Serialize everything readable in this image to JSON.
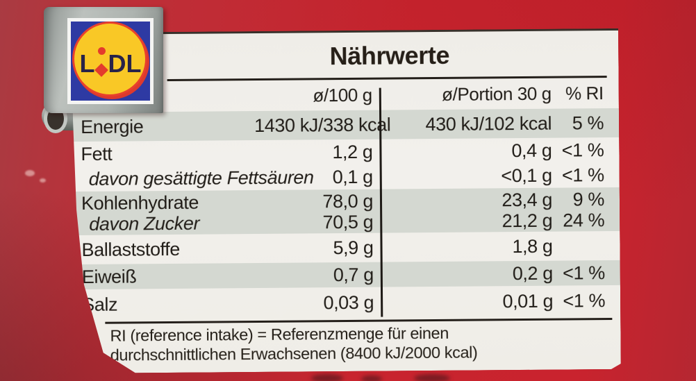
{
  "photo": {
    "background_red": "#c8242e",
    "label_background": "#f0eee9",
    "shaded_row_color": "#d4d8d1",
    "text_color": "#211d18"
  },
  "logo": {
    "brand": "Lidl",
    "letter_left": "L",
    "letters_right": "DL",
    "colors": {
      "blue": "#2e3aa3",
      "yellow": "#f9c826",
      "red": "#e43b2c",
      "letters": "#282349"
    }
  },
  "table": {
    "title": "Nährwerte",
    "columns": {
      "per100": "ø/100 g",
      "portion": "ø/Portion 30 g",
      "ri": "% RI"
    },
    "rows": [
      {
        "label": "Energie",
        "per100": "1430 kJ/338 kcal",
        "portion": "430 kJ/102 kcal",
        "ri": "5 %"
      },
      {
        "label": "Fett",
        "per100": "1,2 g",
        "portion": "0,4 g",
        "ri": "<1 %"
      },
      {
        "label": "davon gesättigte Fettsäuren",
        "per100": "0,1 g",
        "portion": "<0,1 g",
        "ri": "<1 %"
      },
      {
        "label": "Kohlenhydrate",
        "per100": "78,0 g",
        "portion": "23,4 g",
        "ri": "9 %"
      },
      {
        "label": "davon Zucker",
        "per100": "70,5 g",
        "portion": "21,2 g",
        "ri": "24 %"
      },
      {
        "label": "Ballaststoffe",
        "per100": "5,9 g",
        "portion": "1,8 g",
        "ri": ""
      },
      {
        "label": "Eiweiß",
        "per100": "0,7 g",
        "portion": "0,2 g",
        "ri": "<1 %"
      },
      {
        "label": "Salz",
        "per100": "0,03 g",
        "portion": "0,01 g",
        "ri": "<1 %"
      }
    ],
    "footnote_line1": "RI (reference intake) = Referenzmenge für einen",
    "footnote_line2": "durchschnittlichen Erwachsenen (8400 kJ/2000 kcal)"
  }
}
